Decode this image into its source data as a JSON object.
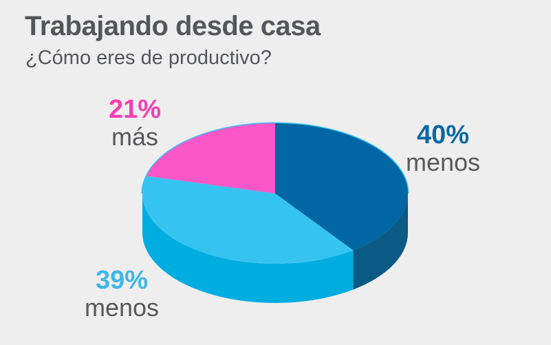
{
  "colors": {
    "background": "#eeeeee",
    "heading_text": "#55565a",
    "label_word_text": "#58585a"
  },
  "chart_data": {
    "type": "pie",
    "style": "3d",
    "title": "Trabajando desde casa",
    "subtitle": "¿Cómo eres de productivo?",
    "start_angle_deg": 0,
    "direction": "clockwise",
    "legend_position": "around-chart",
    "slices": [
      {
        "label": "menos",
        "pct_text": "40%",
        "value_pct": 40,
        "color": "#0067a4",
        "side_color": "#0a5a83",
        "label_color": "#0d68a1"
      },
      {
        "label": "menos",
        "pct_text": "39%",
        "value_pct": 39,
        "color": "#35c4f0",
        "side_color": "#00ade0",
        "label_color": "#3fb7e8"
      },
      {
        "label": "más",
        "pct_text": "21%",
        "value_pct": 21,
        "color": "#fb57c9",
        "side_color": "#d93cae",
        "label_color": "#f63eb4"
      }
    ]
  }
}
